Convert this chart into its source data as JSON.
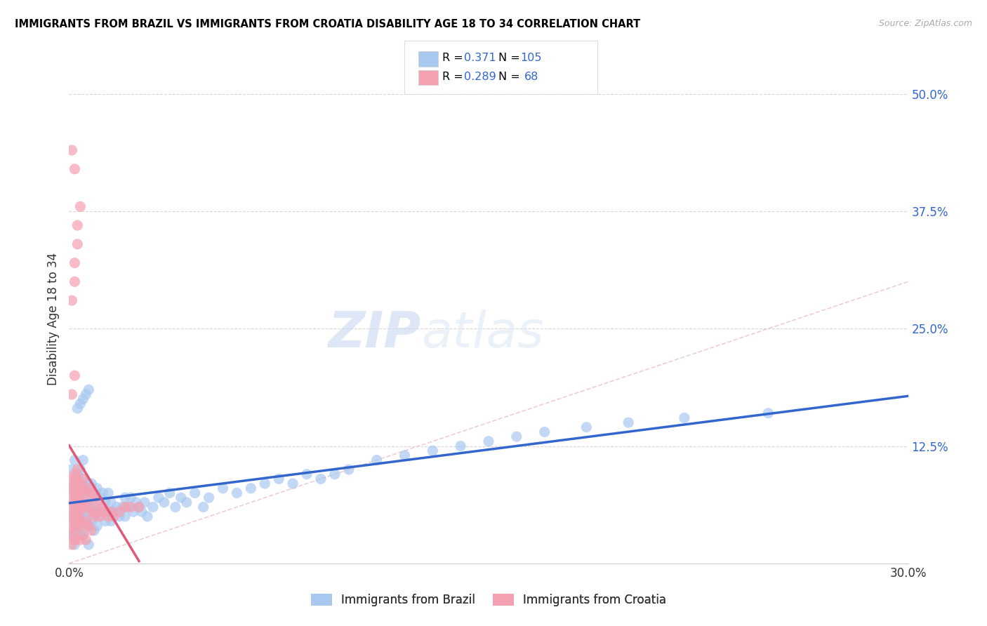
{
  "title": "IMMIGRANTS FROM BRAZIL VS IMMIGRANTS FROM CROATIA DISABILITY AGE 18 TO 34 CORRELATION CHART",
  "source": "Source: ZipAtlas.com",
  "ylabel_label": "Disability Age 18 to 34",
  "x_range": [
    0,
    0.3
  ],
  "y_range": [
    0,
    0.52
  ],
  "watermark_zip": "ZIP",
  "watermark_atlas": "atlas",
  "legend_brazil_R": "0.371",
  "legend_brazil_N": "105",
  "legend_croatia_R": "0.289",
  "legend_croatia_N": "68",
  "color_brazil": "#a8c8f0",
  "color_croatia": "#f5a0b0",
  "color_trend_brazil": "#3366cc",
  "color_trend_croatia": "#e05878",
  "color_diagonal": "#e8c0cc",
  "brazil_x": [
    0.001,
    0.001,
    0.001,
    0.001,
    0.002,
    0.002,
    0.002,
    0.002,
    0.002,
    0.002,
    0.003,
    0.003,
    0.003,
    0.003,
    0.003,
    0.003,
    0.003,
    0.004,
    0.004,
    0.004,
    0.004,
    0.004,
    0.004,
    0.005,
    0.005,
    0.005,
    0.005,
    0.005,
    0.006,
    0.006,
    0.006,
    0.006,
    0.007,
    0.007,
    0.007,
    0.007,
    0.008,
    0.008,
    0.008,
    0.009,
    0.009,
    0.009,
    0.01,
    0.01,
    0.01,
    0.011,
    0.011,
    0.012,
    0.012,
    0.013,
    0.013,
    0.014,
    0.014,
    0.015,
    0.015,
    0.016,
    0.017,
    0.018,
    0.019,
    0.02,
    0.02,
    0.021,
    0.022,
    0.023,
    0.024,
    0.025,
    0.026,
    0.027,
    0.028,
    0.03,
    0.032,
    0.034,
    0.036,
    0.038,
    0.04,
    0.042,
    0.045,
    0.048,
    0.05,
    0.055,
    0.06,
    0.065,
    0.07,
    0.075,
    0.08,
    0.085,
    0.09,
    0.095,
    0.1,
    0.11,
    0.12,
    0.13,
    0.14,
    0.15,
    0.16,
    0.17,
    0.185,
    0.2,
    0.22,
    0.25,
    0.003,
    0.004,
    0.005,
    0.006,
    0.007
  ],
  "brazil_y": [
    0.05,
    0.08,
    0.03,
    0.1,
    0.06,
    0.04,
    0.09,
    0.02,
    0.07,
    0.11,
    0.055,
    0.085,
    0.035,
    0.075,
    0.045,
    0.065,
    0.095,
    0.05,
    0.08,
    0.03,
    0.1,
    0.06,
    0.04,
    0.07,
    0.05,
    0.09,
    0.03,
    0.11,
    0.055,
    0.075,
    0.045,
    0.085,
    0.06,
    0.04,
    0.08,
    0.02,
    0.065,
    0.045,
    0.085,
    0.055,
    0.035,
    0.075,
    0.06,
    0.04,
    0.08,
    0.05,
    0.07,
    0.055,
    0.075,
    0.045,
    0.065,
    0.055,
    0.075,
    0.045,
    0.065,
    0.055,
    0.06,
    0.05,
    0.06,
    0.05,
    0.07,
    0.06,
    0.07,
    0.055,
    0.065,
    0.06,
    0.055,
    0.065,
    0.05,
    0.06,
    0.07,
    0.065,
    0.075,
    0.06,
    0.07,
    0.065,
    0.075,
    0.06,
    0.07,
    0.08,
    0.075,
    0.08,
    0.085,
    0.09,
    0.085,
    0.095,
    0.09,
    0.095,
    0.1,
    0.11,
    0.115,
    0.12,
    0.125,
    0.13,
    0.135,
    0.14,
    0.145,
    0.15,
    0.155,
    0.16,
    0.165,
    0.17,
    0.175,
    0.18,
    0.185
  ],
  "croatia_x": [
    0.001,
    0.001,
    0.001,
    0.001,
    0.001,
    0.001,
    0.001,
    0.001,
    0.002,
    0.002,
    0.002,
    0.002,
    0.002,
    0.002,
    0.002,
    0.002,
    0.003,
    0.003,
    0.003,
    0.003,
    0.003,
    0.003,
    0.003,
    0.004,
    0.004,
    0.004,
    0.004,
    0.004,
    0.004,
    0.005,
    0.005,
    0.005,
    0.005,
    0.005,
    0.006,
    0.006,
    0.006,
    0.006,
    0.007,
    0.007,
    0.007,
    0.008,
    0.008,
    0.008,
    0.009,
    0.009,
    0.01,
    0.01,
    0.011,
    0.012,
    0.013,
    0.014,
    0.015,
    0.016,
    0.018,
    0.02,
    0.022,
    0.025,
    0.001,
    0.002,
    0.001,
    0.002,
    0.002,
    0.003,
    0.003,
    0.004,
    0.001,
    0.002
  ],
  "croatia_y": [
    0.05,
    0.08,
    0.03,
    0.07,
    0.04,
    0.06,
    0.09,
    0.02,
    0.055,
    0.085,
    0.035,
    0.075,
    0.045,
    0.065,
    0.095,
    0.025,
    0.06,
    0.09,
    0.04,
    0.08,
    0.05,
    0.07,
    0.1,
    0.055,
    0.075,
    0.045,
    0.085,
    0.025,
    0.065,
    0.06,
    0.08,
    0.04,
    0.09,
    0.03,
    0.065,
    0.045,
    0.075,
    0.025,
    0.06,
    0.04,
    0.08,
    0.055,
    0.035,
    0.075,
    0.05,
    0.07,
    0.055,
    0.065,
    0.05,
    0.06,
    0.055,
    0.05,
    0.055,
    0.05,
    0.055,
    0.06,
    0.06,
    0.06,
    0.18,
    0.2,
    0.28,
    0.3,
    0.32,
    0.34,
    0.36,
    0.38,
    0.44,
    0.42
  ]
}
